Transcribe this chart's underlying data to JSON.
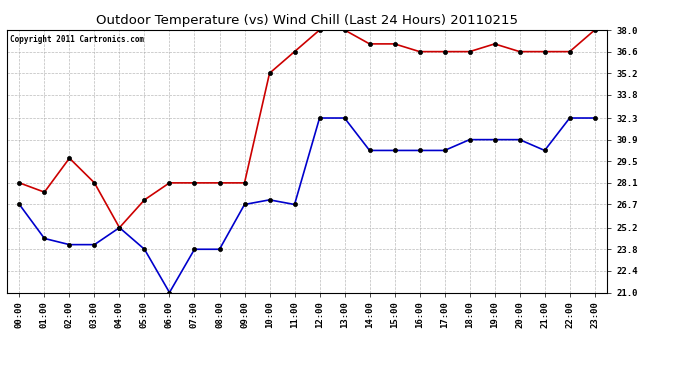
{
  "title": "Outdoor Temperature (vs) Wind Chill (Last 24 Hours) 20110215",
  "copyright_text": "Copyright 2011 Cartronics.com",
  "background_color": "#ffffff",
  "plot_bg_color": "#ffffff",
  "grid_color": "#aaaaaa",
  "hours": [
    "00:00",
    "01:00",
    "02:00",
    "03:00",
    "04:00",
    "05:00",
    "06:00",
    "07:00",
    "08:00",
    "09:00",
    "10:00",
    "11:00",
    "12:00",
    "13:00",
    "14:00",
    "15:00",
    "16:00",
    "17:00",
    "18:00",
    "19:00",
    "20:00",
    "21:00",
    "22:00",
    "23:00"
  ],
  "outdoor_temp": [
    28.1,
    27.5,
    29.7,
    28.1,
    25.2,
    27.0,
    28.1,
    28.1,
    28.1,
    28.1,
    35.2,
    36.6,
    38.0,
    38.0,
    37.1,
    37.1,
    36.6,
    36.6,
    36.6,
    37.1,
    36.6,
    36.6,
    36.6,
    38.0
  ],
  "wind_chill": [
    26.7,
    24.5,
    24.1,
    24.1,
    25.2,
    23.8,
    21.0,
    23.8,
    23.8,
    26.7,
    27.0,
    26.7,
    32.3,
    32.3,
    30.2,
    30.2,
    30.2,
    30.2,
    30.9,
    30.9,
    30.9,
    30.2,
    32.3,
    32.3
  ],
  "temp_color": "#cc0000",
  "chill_color": "#0000cc",
  "marker": "o",
  "marker_size": 3,
  "linewidth": 1.2,
  "ylim": [
    21.0,
    38.0
  ],
  "yticks": [
    21.0,
    22.4,
    23.8,
    25.2,
    26.7,
    28.1,
    29.5,
    30.9,
    32.3,
    33.8,
    35.2,
    36.6,
    38.0
  ],
  "title_fontsize": 9.5,
  "tick_fontsize": 6.5,
  "copyright_fontsize": 5.5
}
